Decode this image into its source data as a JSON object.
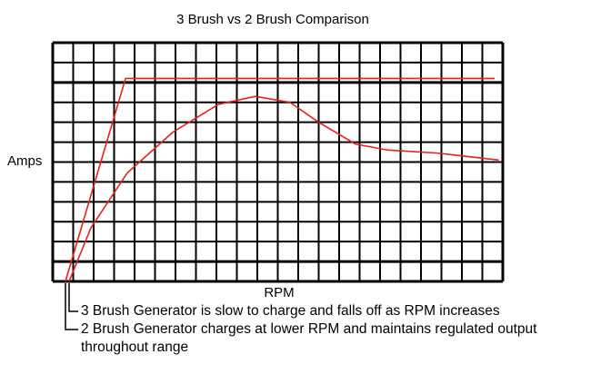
{
  "chart_data": {
    "type": "line",
    "title": "3 Brush vs 2 Brush Comparison",
    "y_label": "Amps",
    "x_label": "RPM",
    "xlim": [
      0,
      22
    ],
    "ylim": [
      0,
      12
    ],
    "grid": true,
    "series": [
      {
        "name": "2 Brush Generator charges at lower RPM and maintains regulated output throughout range",
        "color": "#e8201c",
        "x": [
          0.62,
          3.56,
          21.6
        ],
        "values": [
          0,
          10.2,
          10.2
        ]
      },
      {
        "name": "3 Brush Generator is slow to charge and falls off as RPM increases",
        "color": "#e8201c",
        "x": [
          0.8,
          1.87,
          3.64,
          5.87,
          8.1,
          9.9,
          11.6,
          13,
          14.8,
          16.4,
          18.8,
          21.8
        ],
        "values": [
          0,
          2.7,
          5.45,
          7.5,
          8.9,
          9.3,
          9.0,
          8.0,
          6.9,
          6.6,
          6.45,
          6.1
        ]
      }
    ]
  }
}
